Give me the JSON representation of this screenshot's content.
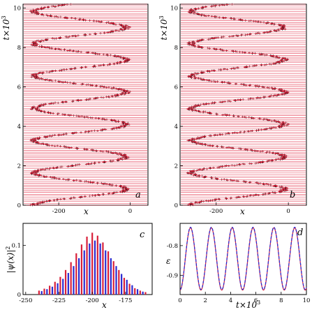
{
  "chart_data": [
    {
      "panel_label": "a",
      "type": "line",
      "xlabel": "x",
      "ylabel": "t×10",
      "ylabel_exp": "3",
      "x_ticks": [
        "-200",
        "0"
      ],
      "y_ticks": [
        "0",
        "2",
        "4",
        "6",
        "8",
        "10"
      ],
      "xlim": [
        -300,
        50
      ],
      "ylim": [
        0,
        10.2
      ],
      "trajectory": {
        "center": -140,
        "amplitude": 130,
        "period": 1.64,
        "phase_at_t0": -1.571
      },
      "colors": {
        "horizontal": "#e0203a",
        "vertical": "#1a1a1a"
      }
    },
    {
      "panel_label": "b",
      "type": "line",
      "xlabel": "x",
      "ylabel": "t×10",
      "ylabel_exp": "3",
      "x_ticks": [
        "-200",
        "0"
      ],
      "y_ticks": [
        "0",
        "2",
        "4",
        "6",
        "8",
        "10"
      ],
      "xlim": [
        -300,
        50
      ],
      "ylim": [
        0,
        10.2
      ],
      "trajectory": {
        "center": -140,
        "amplitude": 130,
        "period": 1.64,
        "phase_at_t0": -1.571
      },
      "colors": {
        "horizontal": "#e0203a",
        "vertical": "#1a1a1a"
      }
    },
    {
      "panel_label": "c",
      "type": "bar",
      "xlabel": "x",
      "ylabel": "|ψ(x)|",
      "ylabel_exp": "2",
      "x_ticks": [
        "-250",
        "-225",
        "-200",
        "-175"
      ],
      "y_ticks": [
        "0",
        "0.1"
      ],
      "xlim": [
        -252,
        -155
      ],
      "ylim": [
        0,
        0.145
      ],
      "series": [
        {
          "color": "#d8203a",
          "x": [
            -240,
            -236,
            -232,
            -228,
            -224,
            -220,
            -216,
            -212,
            -208,
            -204,
            -200,
            -196,
            -192,
            -188,
            -184,
            -180,
            -176,
            -172,
            -168,
            -164,
            -160
          ],
          "values": [
            0.008,
            0.012,
            0.018,
            0.026,
            0.036,
            0.05,
            0.066,
            0.084,
            0.102,
            0.118,
            0.126,
            0.12,
            0.106,
            0.088,
            0.068,
            0.05,
            0.034,
            0.022,
            0.013,
            0.008,
            0.005
          ]
        },
        {
          "color": "#2a2ad0",
          "x": [
            -238,
            -234,
            -230,
            -226,
            -222,
            -218,
            -214,
            -210,
            -206,
            -202,
            -198,
            -194,
            -190,
            -186,
            -182,
            -178,
            -174,
            -170,
            -166,
            -162
          ],
          "values": [
            0.007,
            0.011,
            0.016,
            0.023,
            0.032,
            0.044,
            0.058,
            0.074,
            0.09,
            0.104,
            0.11,
            0.104,
            0.09,
            0.074,
            0.058,
            0.042,
            0.03,
            0.019,
            0.011,
            0.006
          ]
        }
      ]
    },
    {
      "panel_label": "d",
      "type": "line",
      "xlabel": "t×10",
      "xlabel_exp": "3",
      "ylabel": "ε",
      "x_ticks": [
        "0",
        "2",
        "4",
        "6",
        "8",
        "10"
      ],
      "y_ticks": [
        "-0.8",
        "-0.9"
      ],
      "xlim": [
        0,
        10
      ],
      "ylim": [
        -0.965,
        -0.725
      ],
      "oscillation": {
        "mean": -0.845,
        "amplitude": 0.105,
        "period": 1.65
      },
      "series": [
        {
          "color": "#d8203a",
          "style": "solid"
        },
        {
          "color": "#2a2ad0",
          "style": "dashed"
        }
      ]
    }
  ]
}
